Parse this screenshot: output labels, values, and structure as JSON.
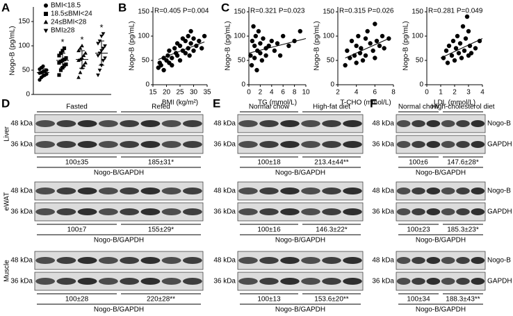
{
  "chart_data": [
    {
      "type": "strip",
      "panel": "A",
      "y_label": "Nogo-B (pg/mL)",
      "ylim": [
        0,
        180
      ],
      "yticks": [
        0,
        50,
        100,
        150
      ],
      "color": "#000000",
      "series": [
        {
          "name": "BMI<18.5",
          "marker": "circle",
          "values": [
            30,
            35,
            38,
            40,
            42,
            44,
            45,
            47,
            48,
            50,
            52,
            55,
            58
          ],
          "mean": 45,
          "sd": 8
        },
        {
          "name": "18.5≤BMI<24",
          "marker": "square",
          "values": [
            40,
            50,
            55,
            60,
            62,
            65,
            68,
            70,
            72,
            75,
            80,
            85,
            90,
            95
          ],
          "mean": 70,
          "sd": 15,
          "annotation": "*"
        },
        {
          "name": "24≤BMI<28",
          "marker": "triangle-up",
          "values": [
            35,
            45,
            55,
            60,
            65,
            70,
            72,
            75,
            80,
            85,
            90,
            95,
            100
          ],
          "mean": 72,
          "sd": 18,
          "annotation": "*"
        },
        {
          "name": "BMI≥28",
          "marker": "triangle-down",
          "values": [
            40,
            50,
            60,
            70,
            75,
            80,
            85,
            90,
            95,
            100,
            105,
            110,
            120,
            125
          ],
          "mean": 85,
          "sd": 25,
          "annotation": "*"
        }
      ]
    },
    {
      "type": "scatter",
      "panel": "B",
      "annotation": "R=0.405 P=0.004",
      "x_label": "BMI (kg/m²)",
      "y_label": "Nogo-B (pg/mL)",
      "color": "#000000",
      "xlim": [
        15,
        35
      ],
      "xticks": [
        15,
        20,
        25,
        30,
        35
      ],
      "ylim": [
        0,
        160
      ],
      "yticks": [
        0,
        50,
        100,
        150
      ],
      "x": [
        17,
        17.5,
        18,
        19,
        19,
        20,
        20.5,
        21,
        21,
        22,
        22,
        23,
        23.5,
        24,
        24,
        25,
        25,
        26,
        26,
        27,
        27,
        28,
        28,
        28.5,
        29,
        29,
        30,
        30,
        31,
        32,
        33,
        34
      ],
      "y": [
        35,
        45,
        40,
        55,
        30,
        50,
        60,
        45,
        70,
        55,
        40,
        75,
        65,
        60,
        85,
        50,
        80,
        70,
        95,
        65,
        90,
        75,
        100,
        60,
        85,
        110,
        70,
        95,
        80,
        90,
        75,
        100
      ],
      "fit": {
        "x": [
          17,
          34
        ],
        "y": [
          52,
          88
        ]
      }
    },
    {
      "type": "scatter",
      "panel": "C",
      "annotation": "R=0.321 P=0.023",
      "x_label": "TG (mmol/L)",
      "y_label": "Nogo-B (pg/mL)",
      "color": "#000000",
      "xlim": [
        0,
        10
      ],
      "xticks": [
        0,
        2,
        4,
        6,
        8,
        10
      ],
      "ylim": [
        0,
        160
      ],
      "yticks": [
        0,
        50,
        100,
        150
      ],
      "x": [
        0.3,
        0.5,
        0.6,
        0.8,
        1,
        1,
        1.2,
        1.4,
        1.5,
        1.7,
        2,
        2,
        2.3,
        2.5,
        3,
        3,
        3.5,
        4,
        4.5,
        5,
        5.5,
        6,
        7,
        8,
        9
      ],
      "y": [
        60,
        40,
        90,
        120,
        80,
        55,
        100,
        30,
        70,
        110,
        65,
        85,
        50,
        95,
        75,
        60,
        80,
        90,
        70,
        85,
        60,
        100,
        80,
        90,
        110
      ],
      "fit": {
        "x": [
          0,
          10
        ],
        "y": [
          65,
          95
        ]
      }
    },
    {
      "type": "scatter",
      "annotation": "R=0.315 P=0.026",
      "x_label": "T-CHO (mmol/L)",
      "y_label": "Nogo-B (pg/mL)",
      "color": "#000000",
      "xlim": [
        2,
        8
      ],
      "xticks": [
        2,
        4,
        6,
        8
      ],
      "ylim": [
        0,
        160
      ],
      "yticks": [
        0,
        50,
        100,
        150
      ],
      "x": [
        2.8,
        3,
        3.3,
        3.5,
        3.8,
        4,
        4,
        4.2,
        4.4,
        4.5,
        4.7,
        5,
        5,
        5.2,
        5.5,
        5.8,
        6,
        6,
        6.2,
        6.5,
        6.8,
        7,
        7.5
      ],
      "y": [
        40,
        70,
        55,
        90,
        60,
        45,
        80,
        100,
        65,
        75,
        50,
        95,
        60,
        110,
        85,
        70,
        125,
        55,
        90,
        80,
        100,
        75,
        95
      ],
      "fit": {
        "x": [
          2.8,
          7.5
        ],
        "y": [
          55,
          95
        ]
      }
    },
    {
      "type": "scatter",
      "annotation": "R=0.281 P=0.049",
      "x_label": "LDL (mmol/L)",
      "y_label": "Nogo-B (pg/mL)",
      "color": "#000000",
      "xlim": [
        0,
        4
      ],
      "xticks": [
        0,
        1,
        2,
        3,
        4
      ],
      "ylim": [
        0,
        160
      ],
      "yticks": [
        0,
        50,
        100,
        150
      ],
      "x": [
        1.2,
        1.4,
        1.5,
        1.6,
        1.8,
        1.9,
        2,
        2.1,
        2.2,
        2.3,
        2.4,
        2.5,
        2.6,
        2.7,
        2.8,
        2.9,
        3,
        3,
        3.1,
        3.2,
        3.5,
        3.8
      ],
      "y": [
        55,
        70,
        45,
        80,
        60,
        90,
        50,
        75,
        100,
        65,
        85,
        55,
        120,
        70,
        95,
        140,
        60,
        110,
        80,
        65,
        75,
        90
      ],
      "fit": {
        "x": [
          1,
          4
        ],
        "y": [
          55,
          95
        ]
      }
    }
  ],
  "blots": [
    {
      "panel": "D",
      "groups": [
        "Fasted",
        "Refed"
      ],
      "rows": [
        {
          "tissue": "Liver",
          "markers": [
            "48 kDa",
            "36 kDa"
          ],
          "quantification": [
            "100±35",
            "185±31*"
          ],
          "ratio": "Nogo-B/GAPDH"
        },
        {
          "tissue": "eWAT",
          "markers": [
            "48 kDa",
            "36 kDa"
          ],
          "quantification": [
            "100±7",
            "155±29*"
          ],
          "ratio": "Nogo-B/GAPDH"
        },
        {
          "tissue": "Muscle",
          "markers": [
            "48 kDa",
            "36 kDa"
          ],
          "quantification": [
            "100±28",
            "220±28**"
          ],
          "ratio": "Nogo-B/GAPDH"
        }
      ]
    },
    {
      "panel": "E",
      "groups": [
        "Normal chow",
        "High-fat diet"
      ],
      "rows": [
        {
          "markers": [
            "48 kDa",
            "36 kDa"
          ],
          "quantification": [
            "100±18",
            "213.4±44**"
          ],
          "ratio": "Nogo-B/GAPDH"
        },
        {
          "markers": [
            "48 kDa",
            "36 kDa"
          ],
          "quantification": [
            "100±16",
            "146.3±22*"
          ],
          "ratio": "Nogo-B/GAPDH"
        },
        {
          "markers": [
            "48 kDa",
            "36 kDa"
          ],
          "quantification": [
            "100±13",
            "153.6±20**"
          ],
          "ratio": "Nogo-B/GAPDH"
        }
      ]
    },
    {
      "panel": "F",
      "groups": [
        "Normal chow",
        "High-cholesterol diet"
      ],
      "rows": [
        {
          "markers": [
            "48 kDa",
            "36 kDa"
          ],
          "proteins": [
            "Nogo-B",
            "GAPDH"
          ],
          "quantification": [
            "100±6",
            "147.6±28*"
          ],
          "ratio": "Nogo-B/GAPDH"
        },
        {
          "markers": [
            "48 kDa",
            "36 kDa"
          ],
          "proteins": [
            "Nogo-B",
            "GAPDH"
          ],
          "quantification": [
            "100±23",
            "185.3±23*"
          ],
          "ratio": "Nogo-B/GAPDH"
        },
        {
          "markers": [
            "48 kDa",
            "36 kDa"
          ],
          "proteins": [
            "Nogo-B",
            "GAPDH"
          ],
          "quantification": [
            "100±34",
            "188.3±43**"
          ],
          "ratio": "Nogo-B/GAPDH"
        }
      ]
    }
  ]
}
